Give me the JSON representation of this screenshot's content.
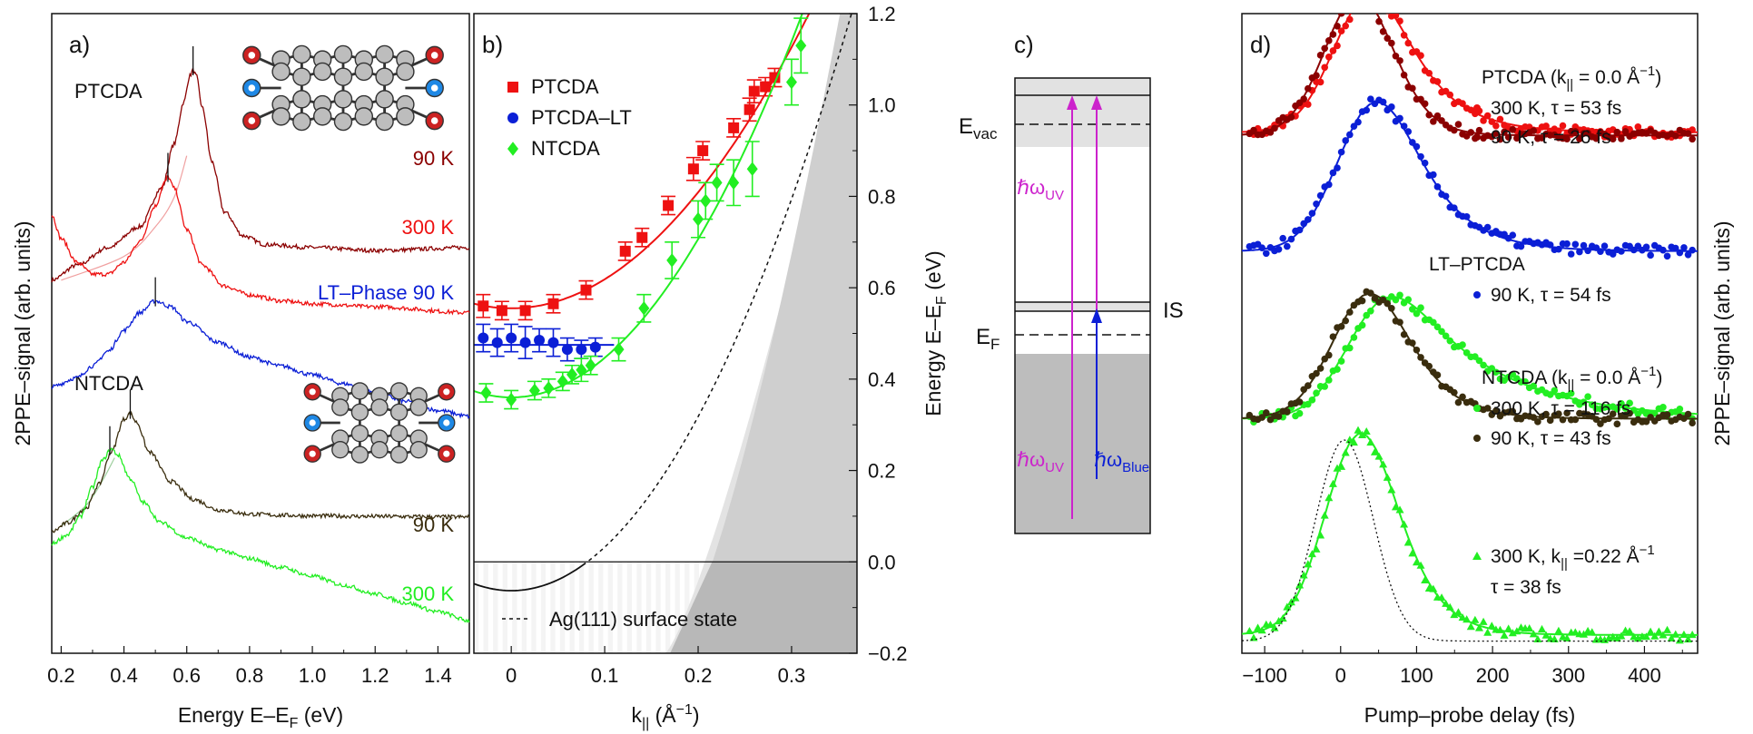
{
  "chart_data": [
    {
      "panel": "a",
      "type": "line",
      "panel_label": "a)",
      "xlabel_main": "Energy E–E",
      "xlabel_sub": "F",
      "xlabel_end": " (eV)",
      "ylabel": "2PPE–signal (arb. units)",
      "xlim": [
        0.17,
        1.5
      ],
      "xticks": [
        0.2,
        0.4,
        0.6,
        0.8,
        1.0,
        1.2,
        1.4
      ],
      "xtick_labels": [
        "0.2",
        "0.4",
        "0.6",
        "0.8",
        "1.0",
        "1.2",
        "1.4"
      ],
      "group_labels": {
        "ptcda": "PTCDA",
        "ntcda": "NTCDA"
      },
      "series": [
        {
          "name": "PTCDA 90 K",
          "label": "90 K",
          "color": "#8b0000",
          "peak": 0.62,
          "marker": 0.62,
          "x": [
            0.17,
            0.25,
            0.35,
            0.45,
            0.52,
            0.56,
            0.59,
            0.61,
            0.62,
            0.63,
            0.65,
            0.68,
            0.72,
            0.78,
            0.85,
            1.0,
            1.2,
            1.5
          ],
          "y": [
            6.3,
            6.55,
            6.85,
            7.2,
            7.85,
            8.6,
            9.3,
            9.75,
            9.85,
            9.75,
            9.2,
            8.3,
            7.45,
            7.05,
            6.9,
            6.85,
            6.8,
            6.85
          ]
        },
        {
          "name": "PTCDA 300 K",
          "label": "300 K",
          "color": "#ee1111",
          "peak": 0.54,
          "marker": 0.54,
          "x": [
            0.17,
            0.2,
            0.25,
            0.3,
            0.35,
            0.4,
            0.45,
            0.5,
            0.53,
            0.54,
            0.56,
            0.6,
            0.65,
            0.72,
            0.8,
            0.9,
            1.0,
            1.2,
            1.5
          ],
          "y": [
            7.4,
            7.0,
            6.6,
            6.4,
            6.4,
            6.6,
            6.95,
            7.55,
            7.95,
            8.05,
            7.85,
            7.15,
            6.55,
            6.2,
            6.05,
            5.95,
            5.9,
            5.85,
            5.75
          ]
        },
        {
          "name": "LT-Phase 90 K",
          "label": "LT–Phase 90 K",
          "color": "#0b1fd6",
          "peak": 0.5,
          "marker": 0.5,
          "x": [
            0.17,
            0.25,
            0.3,
            0.35,
            0.4,
            0.45,
            0.5,
            0.55,
            0.6,
            0.7,
            0.8,
            0.9,
            1.0,
            1.1,
            1.2,
            1.3,
            1.4,
            1.5
          ],
          "y": [
            4.5,
            4.65,
            4.85,
            5.1,
            5.45,
            5.75,
            5.95,
            5.85,
            5.6,
            5.25,
            5.0,
            4.85,
            4.7,
            4.55,
            4.4,
            4.25,
            4.1,
            4.0
          ]
        },
        {
          "name": "NTCDA 90 K",
          "label": "90 K",
          "color": "#3a2d0e",
          "peak": 0.42,
          "marker": 0.42,
          "x": [
            0.17,
            0.22,
            0.28,
            0.32,
            0.36,
            0.4,
            0.42,
            0.44,
            0.48,
            0.55,
            0.62,
            0.7,
            0.8,
            0.9,
            1.0,
            1.2,
            1.5
          ],
          "y": [
            2.05,
            2.2,
            2.45,
            2.85,
            3.4,
            3.95,
            4.05,
            3.9,
            3.4,
            2.9,
            2.6,
            2.42,
            2.35,
            2.33,
            2.32,
            2.31,
            2.3
          ]
        },
        {
          "name": "NTCDA 300 K",
          "label": "300 K",
          "color": "#22ee22",
          "peak": 0.36,
          "marker": 0.355,
          "x": [
            0.17,
            0.22,
            0.26,
            0.3,
            0.33,
            0.36,
            0.38,
            0.42,
            0.46,
            0.52,
            0.6,
            0.7,
            0.8,
            0.9,
            1.0,
            1.1,
            1.2,
            1.3,
            1.4,
            1.5
          ],
          "y": [
            1.85,
            2.0,
            2.3,
            2.8,
            3.25,
            3.45,
            3.35,
            2.95,
            2.55,
            2.2,
            1.95,
            1.75,
            1.6,
            1.45,
            1.3,
            1.15,
            1.0,
            0.85,
            0.7,
            0.55
          ]
        }
      ],
      "ylim": [
        0,
        10.8
      ]
    },
    {
      "panel": "b",
      "type": "scatter",
      "panel_label": "b)",
      "xlabel_main": "k",
      "xlabel_sub": "||",
      "xlabel_end": " (Å",
      "xlabel_sup": "−1",
      "xlabel_close": ")",
      "ylabel_main": "Energy E–E",
      "ylabel_sub": "F",
      "ylabel_end": " (eV)",
      "xlim": [
        -0.04,
        0.37
      ],
      "ylim": [
        -0.2,
        1.2
      ],
      "xticks": [
        0,
        0.1,
        0.2,
        0.3
      ],
      "xtick_labels": [
        "0",
        "0.1",
        "0.2",
        "0.3"
      ],
      "yticks": [
        -0.2,
        0,
        0.2,
        0.4,
        0.6,
        0.8,
        1.0,
        1.2
      ],
      "ytick_labels": [
        "−0.2",
        "0.0",
        "0.2",
        "0.4",
        "0.6",
        "0.8",
        "1.0",
        "1.2"
      ],
      "annotation": "Ag(111) surface state",
      "series": [
        {
          "name": "PTCDA",
          "marker": "square",
          "color": "#ee1111",
          "fit": {
            "e0": 0.555,
            "m": 0.6
          },
          "points": [
            [
              -0.03,
              0.56,
              0.025
            ],
            [
              -0.01,
              0.55,
              0.02
            ],
            [
              0.015,
              0.55,
              0.02
            ],
            [
              0.045,
              0.565,
              0.02
            ],
            [
              0.08,
              0.595,
              0.02
            ],
            [
              0.122,
              0.68,
              0.02
            ],
            [
              0.14,
              0.71,
              0.02
            ],
            [
              0.168,
              0.78,
              0.02
            ],
            [
              0.195,
              0.86,
              0.025
            ],
            [
              0.205,
              0.9,
              0.02
            ],
            [
              0.238,
              0.95,
              0.02
            ],
            [
              0.255,
              0.99,
              0.025
            ],
            [
              0.26,
              1.03,
              0.025
            ],
            [
              0.272,
              1.04,
              0.02
            ],
            [
              0.282,
              1.06,
              0.02
            ]
          ]
        },
        {
          "name": "PTCDA–LT",
          "marker": "circle",
          "color": "#0b1fd6",
          "points": [
            [
              -0.03,
              0.49,
              0.03
            ],
            [
              -0.015,
              0.48,
              0.03
            ],
            [
              0.0,
              0.49,
              0.03
            ],
            [
              0.015,
              0.48,
              0.035
            ],
            [
              0.03,
              0.485,
              0.025
            ],
            [
              0.045,
              0.48,
              0.03
            ],
            [
              0.06,
              0.465,
              0.025
            ],
            [
              0.075,
              0.465,
              0.02
            ],
            [
              0.09,
              0.47,
              0.02
            ]
          ]
        },
        {
          "name": "NTCDA",
          "marker": "diamond",
          "color": "#22ee22",
          "fit": {
            "e0": 0.36,
            "m": 0.44
          },
          "points": [
            [
              -0.027,
              0.37,
              0.02
            ],
            [
              0.0,
              0.355,
              0.02
            ],
            [
              0.025,
              0.375,
              0.02
            ],
            [
              0.04,
              0.38,
              0.02
            ],
            [
              0.055,
              0.395,
              0.02
            ],
            [
              0.065,
              0.41,
              0.02
            ],
            [
              0.075,
              0.42,
              0.025
            ],
            [
              0.085,
              0.43,
              0.02
            ],
            [
              0.115,
              0.465,
              0.025
            ],
            [
              0.142,
              0.555,
              0.03
            ],
            [
              0.172,
              0.66,
              0.04
            ],
            [
              0.2,
              0.75,
              0.04
            ],
            [
              0.208,
              0.79,
              0.04
            ],
            [
              0.22,
              0.83,
              0.04
            ],
            [
              0.238,
              0.83,
              0.05
            ],
            [
              0.258,
              0.86,
              0.06
            ],
            [
              0.3,
              1.05,
              0.05
            ],
            [
              0.31,
              1.13,
              0.06
            ]
          ]
        }
      ],
      "surface_state": {
        "e0": -0.063,
        "m": 0.4
      }
    },
    {
      "panel": "c",
      "type": "diagram",
      "panel_label": "c)",
      "labels": {
        "evac_main": "E",
        "evac_sub": "vac",
        "ef_main": "E",
        "ef_sub": "F",
        "is": "IS",
        "uv1_main": "ℏω",
        "uv1_sub": "UV",
        "uv2_main": "ℏω",
        "uv2_sub": "UV",
        "blue_main": "ℏω",
        "blue_sub": "Blue"
      },
      "colors": {
        "uv": "#cc22cc",
        "blue": "#0b1fd6"
      }
    },
    {
      "panel": "d",
      "type": "scatter",
      "panel_label": "d)",
      "xlabel": "Pump–probe delay (fs)",
      "ylabel": "2PPE–signal (arb. units)",
      "xlim": [
        -130,
        470
      ],
      "xticks": [
        -100,
        0,
        100,
        200,
        300,
        400
      ],
      "xtick_labels": [
        "−100",
        "0",
        "100",
        "200",
        "300",
        "400"
      ],
      "ylim": [
        0,
        10.5
      ],
      "legend": [
        {
          "text_main": "PTCDA (k",
          "text_sub": "||",
          "text_end": " = 0.0 Å",
          "text_sup": "−1",
          "text_close": ")"
        },
        {
          "text": "300 K, τ = 53 fs",
          "color": "#ee1111"
        },
        {
          "text": "90 K, τ = 26 fs",
          "color": "#8b0000"
        },
        {
          "text_main": "LT–PTCDA"
        },
        {
          "text": "90 K, τ = 54 fs",
          "color": "#0b1fd6"
        },
        {
          "text_main": "NTCDA (k",
          "text_sub": "||",
          "text_end": " = 0.0 Å",
          "text_sup": "−1",
          "text_close": ")"
        },
        {
          "text": "300 K, τ = 116 fs",
          "color": "#22ee22"
        },
        {
          "text": "90 K, τ =   43 fs",
          "color": "#3a2d0e"
        },
        {
          "text_main": "300 K, k",
          "text_sub": "||",
          "text_end": " =0.22 Å",
          "text_sup": "−1",
          "color": "#22ee22"
        },
        {
          "text": "τ =  38 fs"
        }
      ],
      "series": [
        {
          "name": "PTCDA 300 K",
          "color": "#ee1111",
          "marker": "circle",
          "baseline": 8.55,
          "amp": 2.25,
          "t0": 22,
          "sigma": 38,
          "tau": 53
        },
        {
          "name": "PTCDA 90 K",
          "color": "#8b0000",
          "marker": "circle",
          "baseline": 8.5,
          "amp": 2.3,
          "t0": 18,
          "sigma": 38,
          "tau": 26
        },
        {
          "name": "LT-PTCDA 90 K",
          "color": "#0b1fd6",
          "marker": "circle",
          "baseline": 6.6,
          "amp": 2.45,
          "t0": 30,
          "sigma": 40,
          "tau": 54
        },
        {
          "name": "NTCDA 300 K",
          "color": "#22ee22",
          "marker": "circle",
          "baseline": 3.85,
          "amp": 2.0,
          "t0": 35,
          "sigma": 40,
          "tau": 116
        },
        {
          "name": "NTCDA 90 K",
          "color": "#3a2d0e",
          "marker": "circle",
          "baseline": 3.85,
          "amp": 2.05,
          "t0": 25,
          "sigma": 40,
          "tau": 43
        },
        {
          "name": "NTCDA 300 K k=0.22",
          "color": "#22ee22",
          "marker": "triangle",
          "baseline": 0.3,
          "amp": 3.3,
          "t0": 15,
          "sigma": 38,
          "tau": 38
        },
        {
          "name": "cross-correlation",
          "color": "#111111",
          "marker": "none",
          "style": "dotted",
          "baseline": 0.2,
          "amp": 3.3,
          "t0": 5,
          "sigma": 38,
          "tau": 0
        }
      ]
    }
  ]
}
